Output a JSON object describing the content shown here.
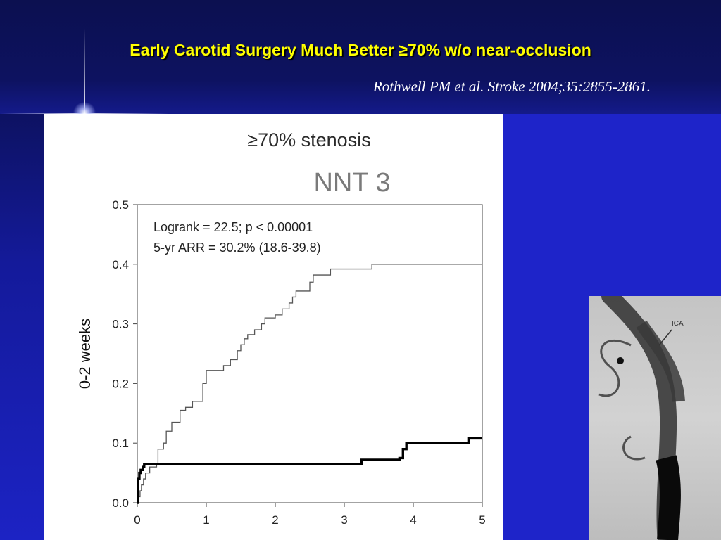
{
  "slide": {
    "title": "Early Carotid Surgery Much Better ≥70% w/o near-occlusion",
    "citation": "Rothwell PM et al. Stroke 2004;35:2855-2861."
  },
  "angiogram": {
    "label": "ICA"
  },
  "chart_data": {
    "type": "line",
    "title": "≥70% stenosis",
    "overlay_label": "NNT 3",
    "ylabel": "0-2 weeks",
    "xlabel": "",
    "xlim": [
      0,
      5
    ],
    "ylim": [
      0,
      0.5
    ],
    "x_ticks": [
      "0",
      "1",
      "2",
      "3",
      "4",
      "5"
    ],
    "y_ticks": [
      "0.0",
      "0.1",
      "0.2",
      "0.3",
      "0.4",
      "0.5"
    ],
    "annotations": [
      "Logrank = 22.5; p < 0.00001",
      "5-yr ARR = 30.2% (18.6-39.8)"
    ],
    "legend": "none",
    "grid": false,
    "series": [
      {
        "color": "#555555",
        "line_width": "thin",
        "points": [
          [
            0,
            0
          ],
          [
            0.02,
            0.01
          ],
          [
            0.04,
            0.02
          ],
          [
            0.06,
            0.03
          ],
          [
            0.09,
            0.04
          ],
          [
            0.12,
            0.05
          ],
          [
            0.18,
            0.06
          ],
          [
            0.28,
            0.065
          ],
          [
            0.3,
            0.09
          ],
          [
            0.38,
            0.1
          ],
          [
            0.42,
            0.12
          ],
          [
            0.5,
            0.135
          ],
          [
            0.62,
            0.155
          ],
          [
            0.7,
            0.16
          ],
          [
            0.8,
            0.17
          ],
          [
            0.95,
            0.2
          ],
          [
            1.0,
            0.222
          ],
          [
            1.25,
            0.23
          ],
          [
            1.35,
            0.24
          ],
          [
            1.45,
            0.255
          ],
          [
            1.5,
            0.265
          ],
          [
            1.55,
            0.275
          ],
          [
            1.6,
            0.282
          ],
          [
            1.7,
            0.29
          ],
          [
            1.8,
            0.3
          ],
          [
            1.85,
            0.31
          ],
          [
            2.0,
            0.315
          ],
          [
            2.1,
            0.325
          ],
          [
            2.2,
            0.335
          ],
          [
            2.25,
            0.345
          ],
          [
            2.3,
            0.355
          ],
          [
            2.5,
            0.37
          ],
          [
            2.55,
            0.382
          ],
          [
            2.8,
            0.392
          ],
          [
            3.4,
            0.4
          ],
          [
            5.0,
            0.4
          ]
        ]
      },
      {
        "color": "#000000",
        "line_width": "thick",
        "points": [
          [
            0,
            0
          ],
          [
            0.01,
            0.04
          ],
          [
            0.03,
            0.05
          ],
          [
            0.05,
            0.055
          ],
          [
            0.08,
            0.06
          ],
          [
            0.1,
            0.065
          ],
          [
            3.2,
            0.065
          ],
          [
            3.25,
            0.072
          ],
          [
            3.8,
            0.075
          ],
          [
            3.85,
            0.09
          ],
          [
            3.9,
            0.1
          ],
          [
            4.75,
            0.1
          ],
          [
            4.8,
            0.108
          ],
          [
            5.0,
            0.108
          ]
        ]
      }
    ]
  }
}
